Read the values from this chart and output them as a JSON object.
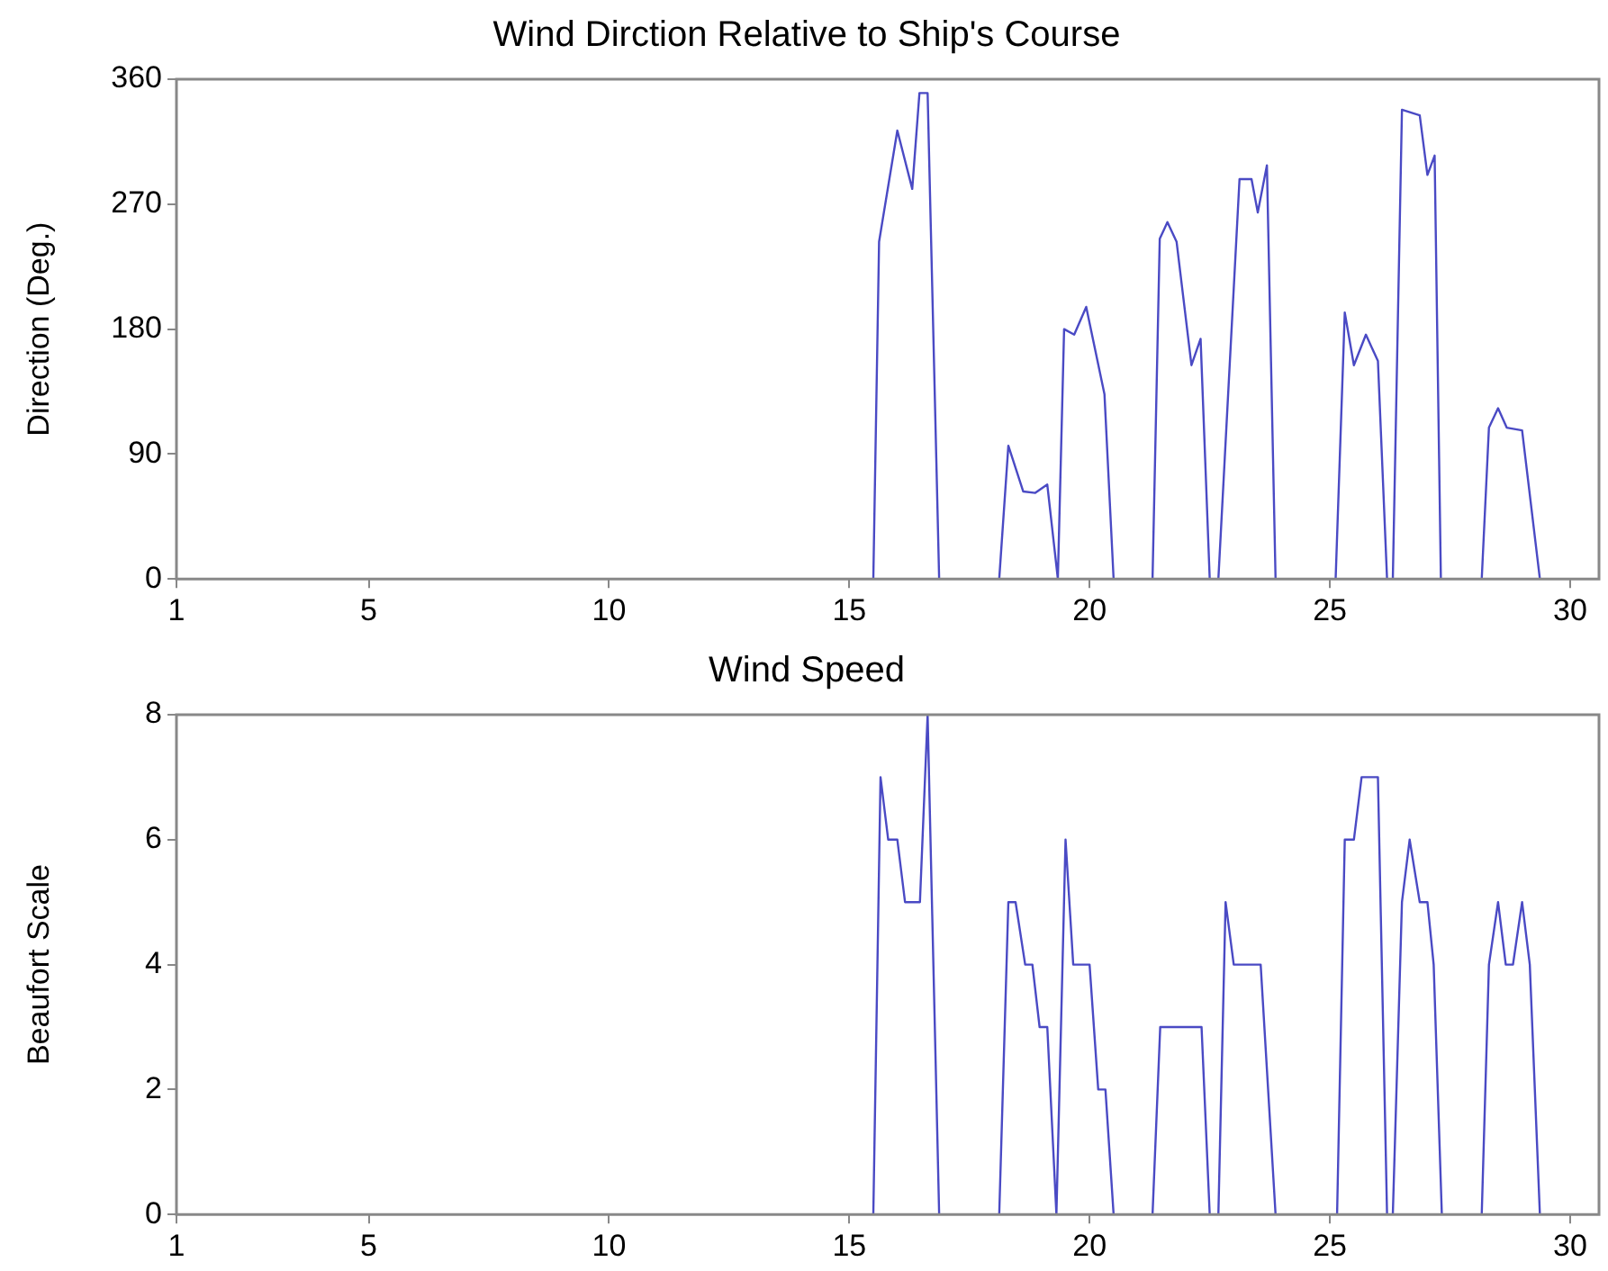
{
  "chart_data": [
    {
      "type": "line",
      "title": "Wind Dirction Relative to Ship's Course",
      "ylabel": "Direction (Deg.)",
      "xlim": [
        1,
        30.6
      ],
      "xticks": [
        1,
        5,
        10,
        15,
        20,
        25,
        30
      ],
      "ylim": [
        0,
        360
      ],
      "yticks": [
        0,
        90,
        180,
        270,
        360
      ],
      "grid": false,
      "legend": false,
      "series": [
        {
          "color": "#4a4ac4",
          "x": [
            15.5,
            15.62,
            16.0,
            16.31,
            16.46,
            16.63,
            16.87,
            18.12,
            18.31,
            18.62,
            18.87,
            19.12,
            19.34,
            19.47,
            19.68,
            19.93,
            20.31,
            20.5,
            21.31,
            21.46,
            21.62,
            21.81,
            22.12,
            22.31,
            22.5,
            22.68,
            23.12,
            23.37,
            23.5,
            23.69,
            23.87,
            25.12,
            25.31,
            25.5,
            25.75,
            26.0,
            26.19,
            26.31,
            26.5,
            26.87,
            27.03,
            27.18,
            27.31,
            28.16,
            28.31,
            28.5,
            28.68,
            29.0,
            29.37
          ],
          "values": [
            0,
            243,
            323,
            281,
            350,
            350,
            0,
            0,
            96,
            63,
            62,
            68,
            0,
            180,
            176,
            196,
            133,
            0,
            0,
            245,
            257,
            243,
            154,
            173,
            0,
            0,
            288,
            288,
            264,
            298,
            0,
            0,
            192,
            154,
            176,
            157,
            0,
            0,
            338,
            334,
            291,
            305,
            0,
            0,
            109,
            123,
            109,
            107,
            0
          ]
        }
      ]
    },
    {
      "type": "line",
      "title": "Wind Speed",
      "ylabel": "Beaufort Scale",
      "xlim": [
        1,
        30.6
      ],
      "xticks": [
        1,
        5,
        10,
        15,
        20,
        25,
        30
      ],
      "ylim": [
        0,
        8
      ],
      "yticks": [
        0,
        2,
        4,
        6,
        8
      ],
      "grid": false,
      "legend": false,
      "series": [
        {
          "color": "#4a4ac4",
          "x": [
            15.5,
            15.65,
            15.81,
            16.0,
            16.16,
            16.47,
            16.63,
            16.87,
            18.12,
            18.31,
            18.46,
            18.66,
            18.81,
            18.96,
            19.12,
            19.31,
            19.5,
            19.66,
            20.0,
            20.18,
            20.33,
            20.5,
            21.31,
            21.47,
            22.33,
            22.5,
            22.68,
            22.83,
            23.0,
            23.56,
            23.87,
            25.15,
            25.31,
            25.5,
            25.66,
            26.0,
            26.19,
            26.31,
            26.5,
            26.66,
            26.87,
            27.03,
            27.16,
            27.33,
            28.16,
            28.31,
            28.5,
            28.66,
            28.81,
            29.0,
            29.16,
            29.37
          ],
          "values": [
            0,
            7,
            6,
            6,
            5,
            5,
            8,
            0,
            0,
            5,
            5,
            4,
            4,
            3,
            3,
            0,
            6,
            4,
            4,
            2,
            2,
            0,
            0,
            3,
            3,
            0,
            0,
            5,
            4,
            4,
            0,
            0,
            6,
            6,
            7,
            7,
            0,
            0,
            5,
            6,
            5,
            5,
            4,
            0,
            0,
            4,
            5,
            4,
            4,
            5,
            4,
            0
          ]
        }
      ]
    }
  ]
}
